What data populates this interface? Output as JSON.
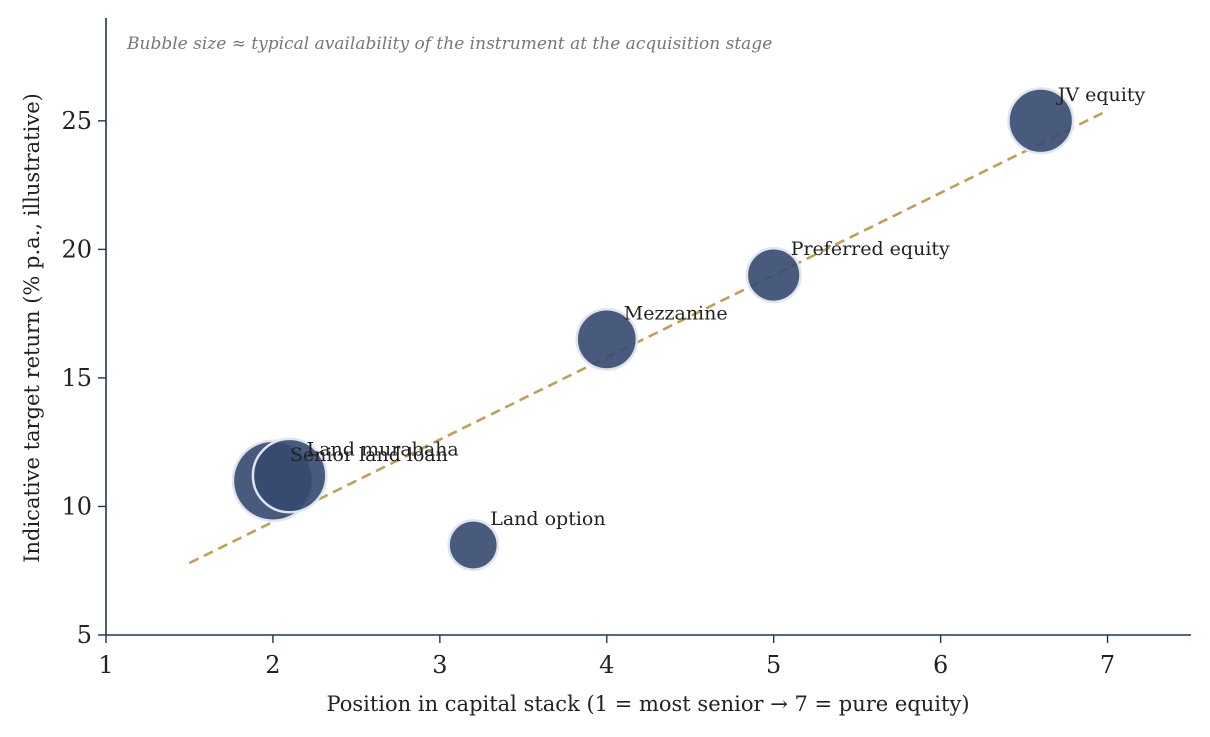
{
  "chart_data": {
    "type": "scatter",
    "subtitle": "Bubble size ≈ typical availability of the instrument at the acquisition stage",
    "xlabel": "Position in capital stack (1 = most senior → 7 = pure equity)",
    "ylabel": "Indicative target return (% p.a., illustrative)",
    "xlim": [
      1,
      7.5
    ],
    "ylim": [
      5,
      29
    ],
    "xticks": [
      "1",
      "2",
      "3",
      "4",
      "5",
      "6",
      "7"
    ],
    "yticks": [
      "5",
      "10",
      "15",
      "20",
      "25"
    ],
    "grid": false,
    "points": [
      {
        "label": "Senior land loan",
        "x": 2.0,
        "y": 11.0,
        "size": 1.0
      },
      {
        "label": "Land murabaha",
        "x": 2.1,
        "y": 11.2,
        "size": 0.85
      },
      {
        "label": "Land option",
        "x": 3.2,
        "y": 8.5,
        "size": 0.3
      },
      {
        "label": "Mezzanine",
        "x": 4.0,
        "y": 16.5,
        "size": 0.55
      },
      {
        "label": "Preferred equity",
        "x": 5.0,
        "y": 19.0,
        "size": 0.4
      },
      {
        "label": "JV equity",
        "x": 6.6,
        "y": 25.0,
        "size": 0.65
      }
    ],
    "trend_line": {
      "x": [
        1.5,
        7.0
      ],
      "y": [
        7.8,
        25.4
      ]
    },
    "colors": {
      "bubble": "#34496e",
      "bubble_edge": "#dfe4ee",
      "trend": "#bfa055",
      "axis": "#1f3552",
      "text": "#222222",
      "subtitle": "#777777"
    }
  }
}
